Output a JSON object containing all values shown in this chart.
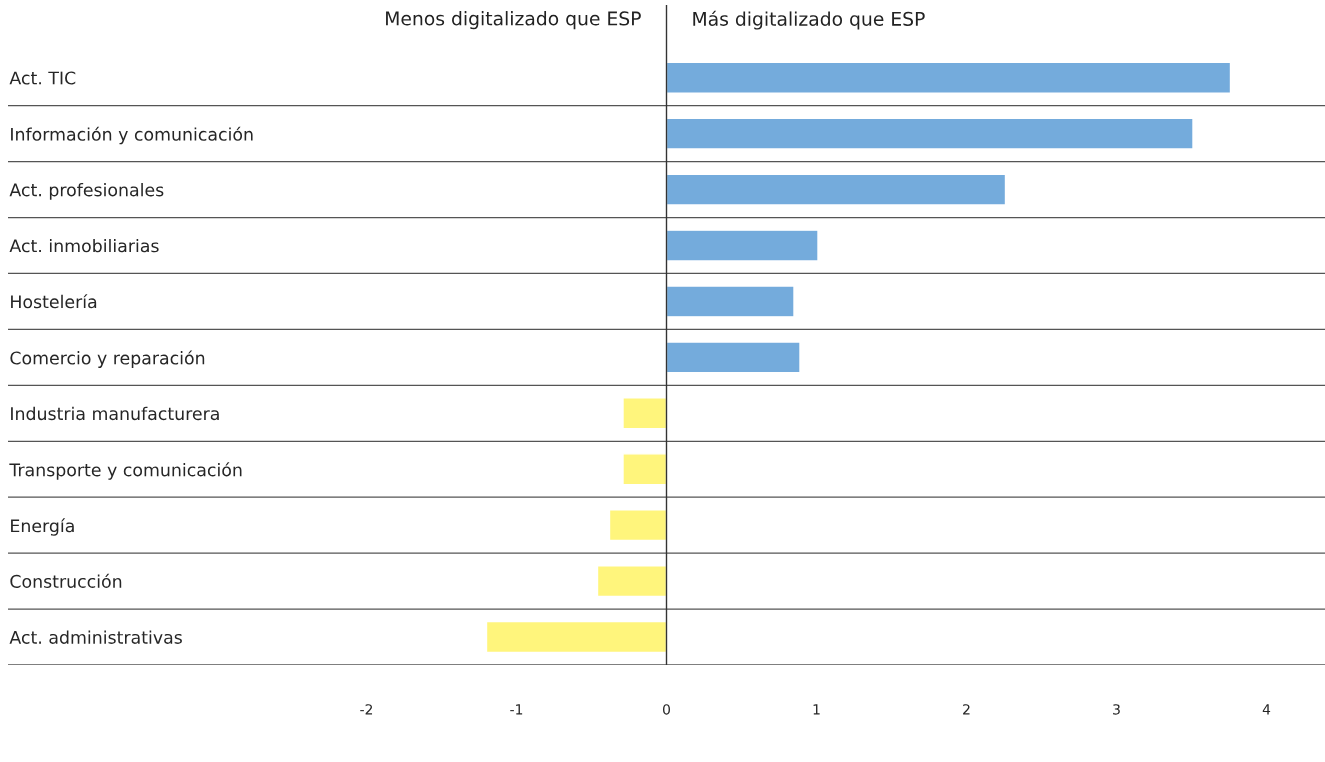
{
  "chart_data": {
    "type": "bar",
    "orientation": "horizontal",
    "categories": [
      "Act. TIC",
      "Información y comunicación",
      "Act. profesionales",
      "Act. inmobiliarias",
      "Hostelería",
      "Comercio y reparación",
      "Industria manufacturera",
      "Transporte y comunicación",
      "Energía",
      "Construcción",
      "Act. administrativas"
    ],
    "values": [
      3.76,
      3.51,
      2.26,
      1.01,
      0.85,
      0.89,
      -0.29,
      -0.29,
      -0.38,
      -0.46,
      -1.2
    ],
    "colors": [
      "#74abdc",
      "#74abdc",
      "#74abdc",
      "#74abdc",
      "#74abdc",
      "#74abdc",
      "#fff57c",
      "#fff57c",
      "#fff57c",
      "#fff57c",
      "#fff57c"
    ],
    "xlim": [
      -4.39,
      4.39
    ],
    "xticks": [
      -2,
      -1,
      0,
      1,
      2,
      3,
      4
    ],
    "grid": "y",
    "ref_lines": [
      {
        "axis": "x",
        "value": 0,
        "color": "#333333"
      }
    ],
    "annotations": [
      "Menos digitalizado que ESP",
      "Más digitalizado que ESP"
    ]
  }
}
